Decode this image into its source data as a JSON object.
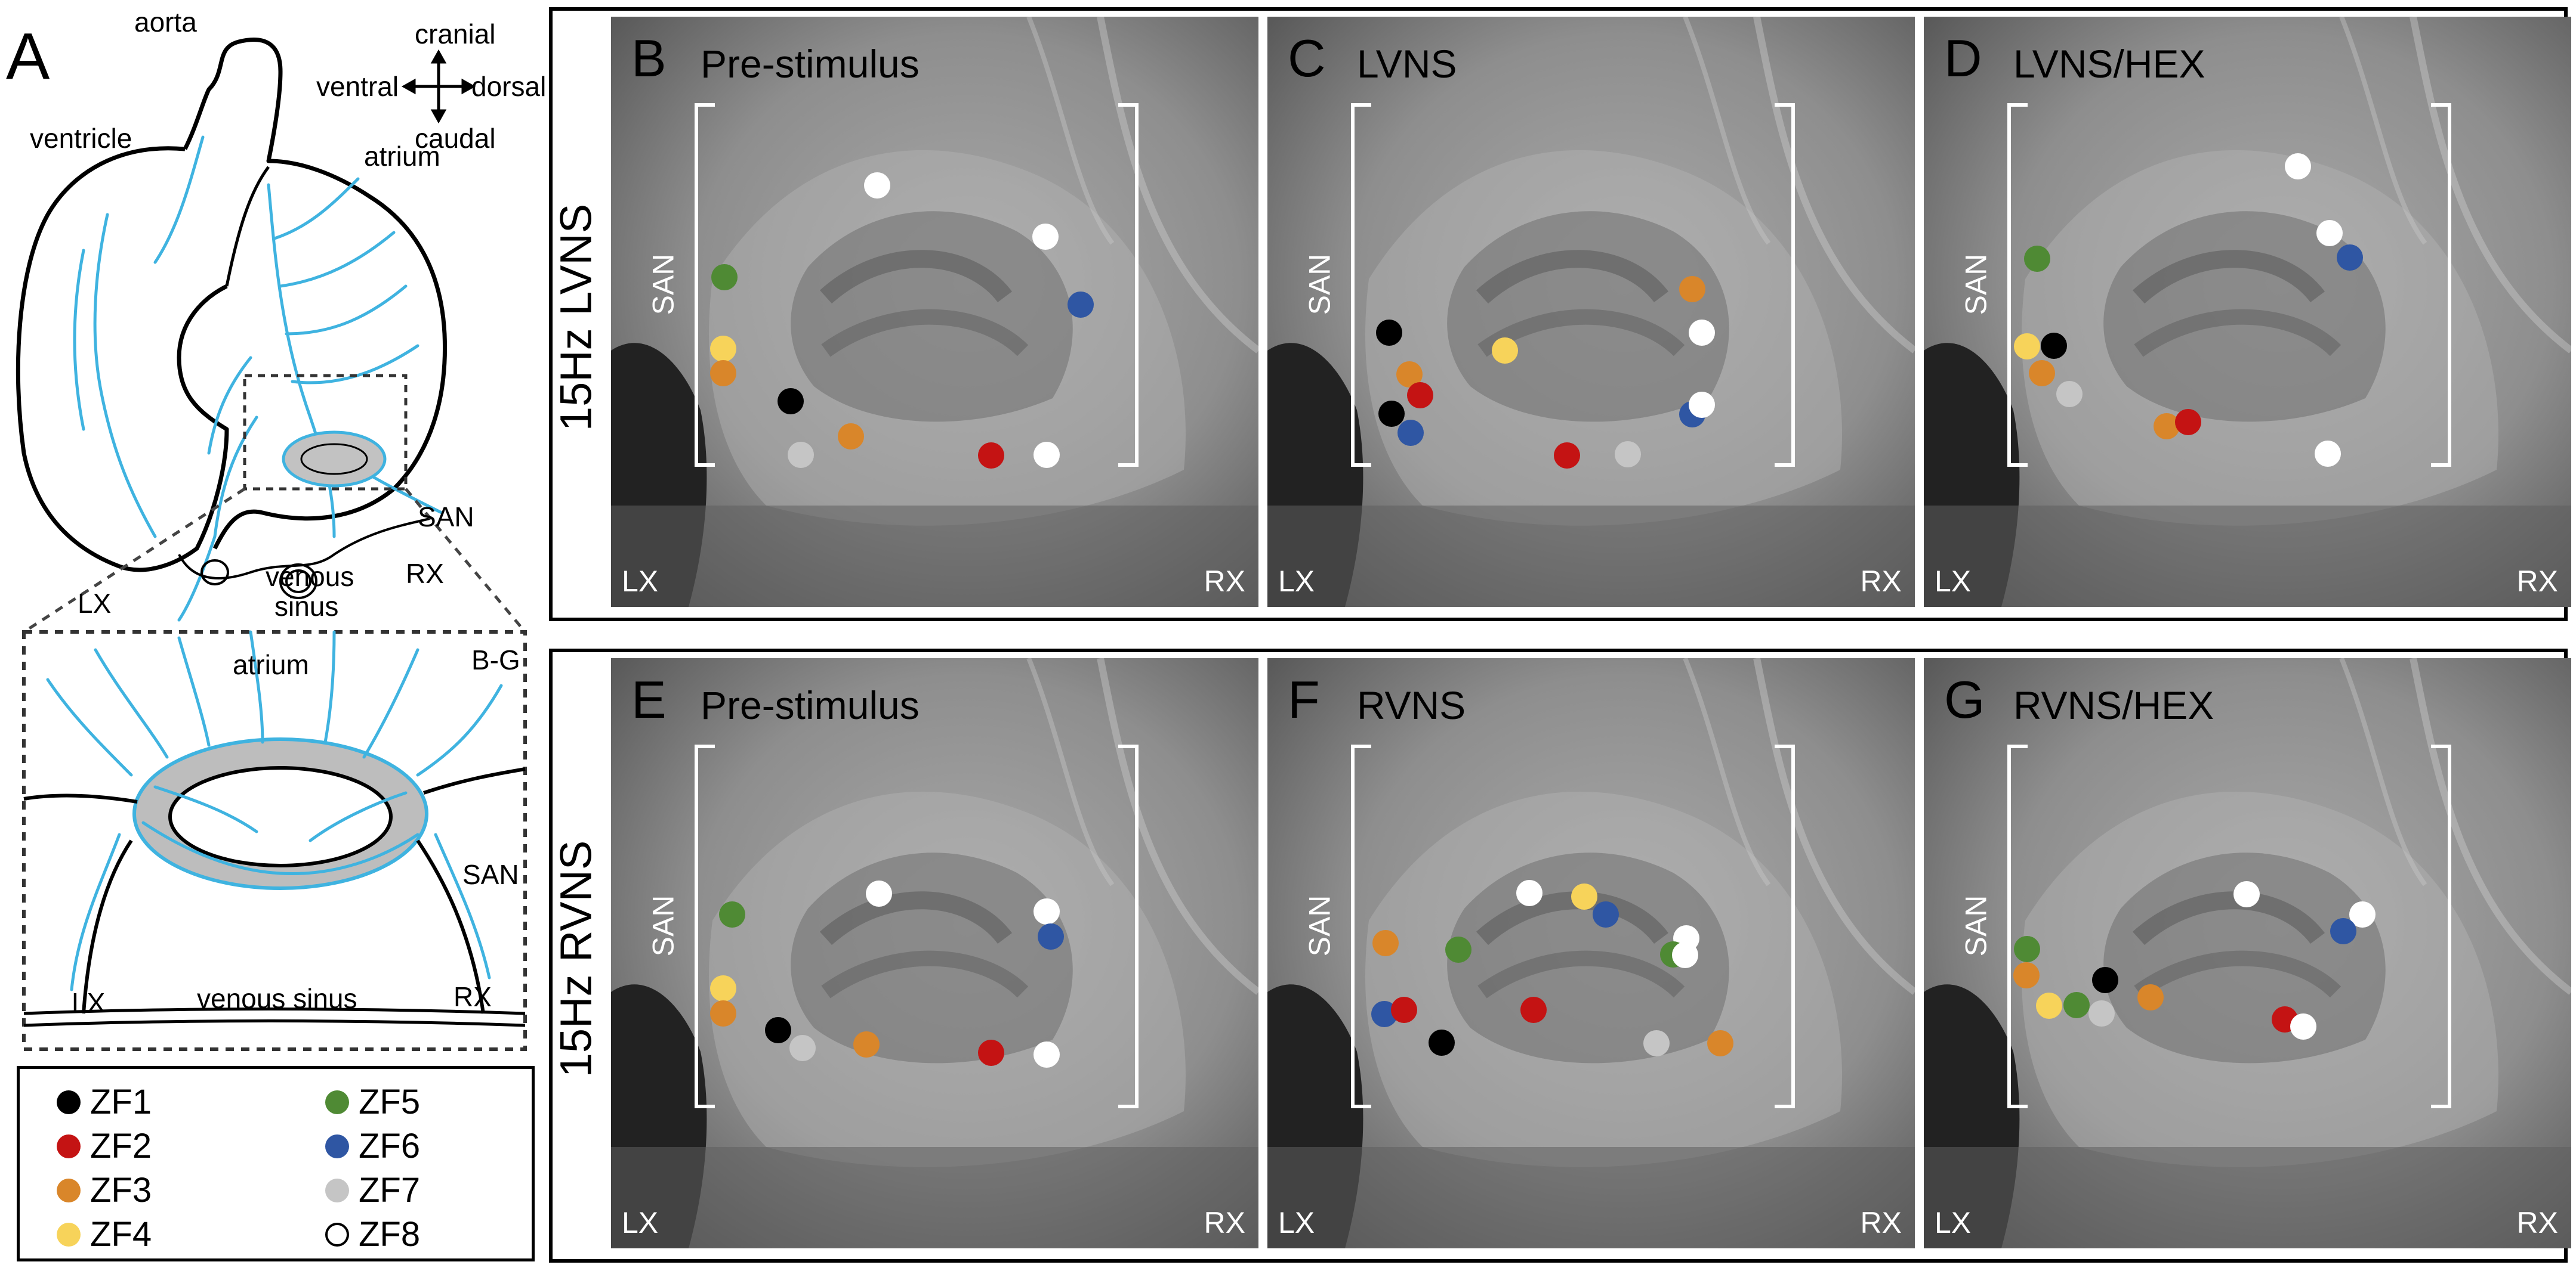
{
  "panel_a": {
    "letter": "A",
    "orientation": {
      "up": "cranial",
      "left": "ventral",
      "right": "dorsal",
      "down": "caudal"
    },
    "labels": {
      "aorta": "aorta",
      "ventricle": "ventricle",
      "atrium": "atrium",
      "san": "SAN",
      "lx": "LX",
      "rx": "RX",
      "venous_sinus_1": "venous",
      "venous_sinus_2": "sinus"
    },
    "inset": {
      "tag": "B-G",
      "atrium": "atrium",
      "san": "SAN",
      "lx": "LX",
      "rx": "RX",
      "venous_sinus": "venous sinus"
    }
  },
  "legend": [
    {
      "label": "ZF1",
      "color": "#000000"
    },
    {
      "label": "ZF2",
      "color": "#c41313"
    },
    {
      "label": "ZF3",
      "color": "#d9862a"
    },
    {
      "label": "ZF4",
      "color": "#f7d35a"
    },
    {
      "label": "ZF5",
      "color": "#4f8a34"
    },
    {
      "label": "ZF6",
      "color": "#2f56a3"
    },
    {
      "label": "ZF7",
      "color": "#c5c5c5"
    },
    {
      "label": "ZF8",
      "color": "#ffffff"
    }
  ],
  "rows": [
    {
      "label": "15Hz LVNS",
      "panels": [
        {
          "letter": "B",
          "title": "Pre-stimulus"
        },
        {
          "letter": "C",
          "title": "LVNS"
        },
        {
          "letter": "D",
          "title": "LVNS/HEX"
        }
      ]
    },
    {
      "label": "15Hz RVNS",
      "panels": [
        {
          "letter": "E",
          "title": "Pre-stimulus"
        },
        {
          "letter": "F",
          "title": "RVNS"
        },
        {
          "letter": "G",
          "title": "RVNS/HEX"
        }
      ]
    }
  ],
  "image_labels": {
    "lx": "LX",
    "rx": "RX",
    "san": "SAN"
  }
}
